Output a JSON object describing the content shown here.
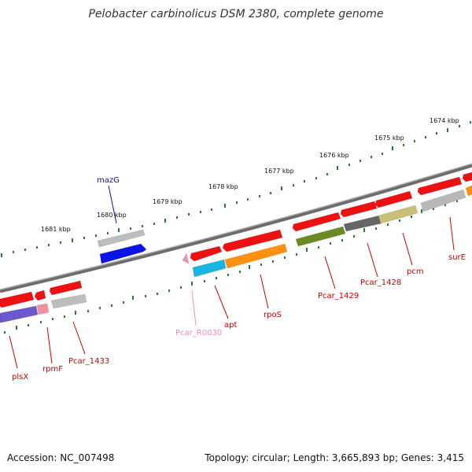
{
  "title": "Pelobacter carbinolicus DSM 2380, complete genome",
  "accession": "Accession: NC_007498",
  "topology": "Topology: circular; Length: 3,665,893 bp; Genes: 3,415",
  "scale_labels": [
    {
      "text": "1681 kbp"
    },
    {
      "text": "1680 kbp"
    },
    {
      "text": "1679 kbp"
    },
    {
      "text": "1678 kbp"
    },
    {
      "text": "1677 kbp"
    },
    {
      "text": "1676 kbp"
    },
    {
      "text": "1675 kbp"
    },
    {
      "text": "1674 kbp"
    }
  ],
  "gene_labels": [
    {
      "text": "mazG",
      "color": "#1010a0"
    },
    {
      "text": "plsX",
      "color": "#cc0000"
    },
    {
      "text": "rpmF",
      "color": "#cc0000"
    },
    {
      "text": "Pcar_1433",
      "color": "#cc0000"
    },
    {
      "text": "Pcar_R0030",
      "color": "#ee88bb"
    },
    {
      "text": "apt",
      "color": "#cc0000"
    },
    {
      "text": "rpoS",
      "color": "#cc0000"
    },
    {
      "text": "Pcar_1429",
      "color": "#cc0000"
    },
    {
      "text": "Pcar_1428",
      "color": "#cc0000"
    },
    {
      "text": "pcm",
      "color": "#cc0000"
    },
    {
      "text": "surE",
      "color": "#cc0000"
    }
  ],
  "colors": {
    "backbone": "#777777",
    "scale": "#2a7d2a",
    "red": "#ee1111",
    "grey": "#b0b0b0",
    "blue": "#0a14e6",
    "cyan": "#1ab4e0",
    "orange": "#ff9010",
    "olive": "#6a8a22",
    "darkgrey": "#666666",
    "khaki": "#c8c078",
    "purple": "#6a5acd",
    "pink": "#f090a0"
  }
}
